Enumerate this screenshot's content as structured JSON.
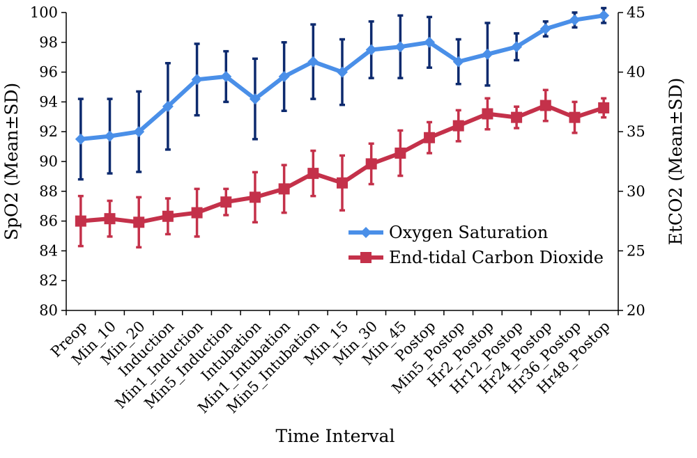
{
  "chart_data": {
    "type": "line",
    "title": "",
    "xlabel": "Time Interval",
    "ylabel": "SpO2 (Mean±SD)",
    "y2label": "EtCO2 (Mean±SD)",
    "ylim": [
      80,
      100
    ],
    "y2lim": [
      20,
      45
    ],
    "yticks": [
      "80",
      "82",
      "84",
      "86",
      "88",
      "90",
      "92",
      "94",
      "96",
      "98",
      "100"
    ],
    "y2ticks": [
      "20",
      "25",
      "30",
      "35",
      "40",
      "45"
    ],
    "grid": false,
    "legend_position": "center-right",
    "categories": [
      "Preop",
      "Min_10",
      "Min_20",
      "Induction",
      "Min1_Induction",
      "Min5_Induction",
      "Intubation",
      "Min1_Intubation",
      "Min5_Intubation",
      "Min_15",
      "Min_30",
      "Min_45",
      "Postop",
      "Min5_Postop",
      "Hr2_Postop",
      "Hr12_Postop",
      "Hr24_Postop",
      "Hr36_Postop",
      "Hr48_Postop"
    ],
    "series": [
      {
        "name": "Oxygen Saturation",
        "axis": "left",
        "color": "#4a8fe8",
        "error_color": "#0d2a6e",
        "marker": "diamond",
        "values": [
          91.5,
          91.7,
          92.0,
          93.7,
          95.5,
          95.7,
          94.2,
          95.7,
          96.7,
          96.0,
          97.5,
          97.7,
          98.0,
          96.7,
          97.2,
          97.7,
          98.9,
          99.5,
          99.8
        ],
        "sd": [
          2.7,
          2.5,
          2.7,
          2.9,
          2.4,
          1.7,
          2.7,
          2.3,
          2.5,
          2.2,
          1.9,
          2.1,
          1.7,
          1.5,
          2.1,
          0.9,
          0.5,
          0.5,
          0.5
        ]
      },
      {
        "name": "End-tidal Carbon Dioxide",
        "axis": "right",
        "color": "#c4314a",
        "error_color": "#c4314a",
        "marker": "square",
        "values": [
          27.5,
          27.7,
          27.4,
          27.9,
          28.2,
          29.1,
          29.5,
          30.2,
          31.5,
          30.7,
          32.3,
          33.2,
          34.5,
          35.5,
          36.5,
          36.2,
          37.2,
          36.2,
          37.0
        ],
        "sd": [
          2.1,
          1.5,
          2.1,
          1.5,
          2.0,
          1.1,
          2.1,
          2.0,
          1.9,
          2.3,
          1.7,
          1.9,
          1.3,
          1.3,
          1.3,
          0.9,
          1.3,
          1.3,
          0.8
        ]
      }
    ]
  }
}
